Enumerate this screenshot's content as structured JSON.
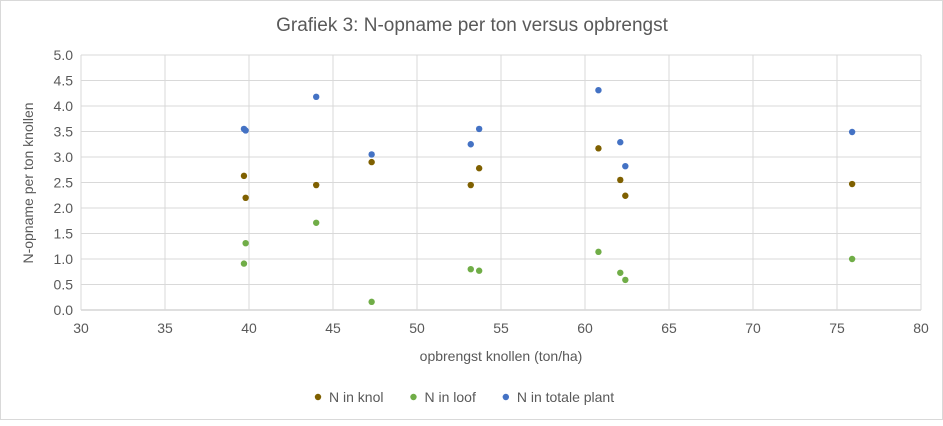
{
  "chart_data": {
    "type": "scatter",
    "title": "Grafiek 3: N-opname per ton versus opbrengst",
    "xlabel": "opbrengst knollen (ton/ha)",
    "ylabel": "N-opname per ton knollen",
    "xlim": [
      30,
      80
    ],
    "ylim": [
      0,
      5
    ],
    "xticks": [
      "30",
      "35",
      "40",
      "45",
      "50",
      "55",
      "60",
      "65",
      "70",
      "75",
      "80"
    ],
    "yticks": [
      "0.0",
      "0.5",
      "1.0",
      "1.5",
      "2.0",
      "2.5",
      "3.0",
      "3.5",
      "4.0",
      "4.5",
      "5.0"
    ],
    "grid": true,
    "legend_position": "bottom",
    "x": [
      39.7,
      39.8,
      44.0,
      47.3,
      53.2,
      53.7,
      60.8,
      62.1,
      62.4,
      75.9
    ],
    "series": [
      {
        "name": "N in knol",
        "color": "#7f6000",
        "values": [
          2.63,
          2.2,
          2.45,
          2.9,
          2.45,
          2.78,
          3.17,
          2.55,
          2.24,
          2.47
        ]
      },
      {
        "name": "N in loof",
        "color": "#70ad47",
        "values": [
          0.91,
          1.31,
          1.71,
          0.16,
          0.8,
          0.77,
          1.14,
          0.73,
          0.59,
          1.0
        ]
      },
      {
        "name": "N in totale plant",
        "color": "#4472c4",
        "values": [
          3.55,
          3.52,
          4.18,
          3.05,
          3.25,
          3.55,
          4.31,
          3.29,
          2.82,
          3.49
        ]
      }
    ]
  }
}
